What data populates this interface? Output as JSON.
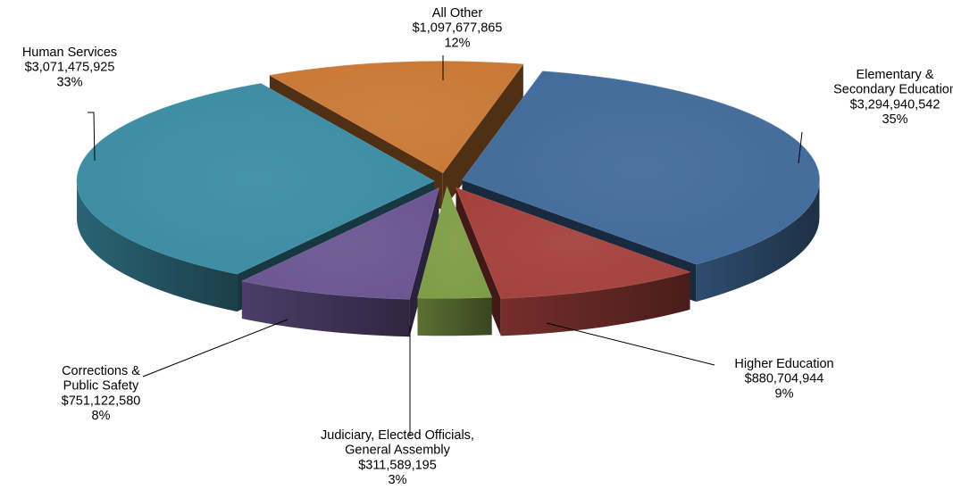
{
  "chart_data": {
    "type": "pie",
    "title": "",
    "slices": [
      {
        "name": "All Other",
        "lines": [
          "All Other"
        ],
        "amount": "$1,097,677,865",
        "value": 1097677865,
        "percent": "12%",
        "color": "#c97834"
      },
      {
        "name": "Elementary & Secondary Education",
        "lines": [
          "Elementary &",
          "Secondary Education"
        ],
        "amount": "$3,294,940,542",
        "value": 3294940542,
        "percent": "35%",
        "color": "#416a9a"
      },
      {
        "name": "Higher Education",
        "lines": [
          "Higher Education"
        ],
        "amount": "$880,704,944",
        "value": 880704944,
        "percent": "9%",
        "color": "#a3403c"
      },
      {
        "name": "Judiciary, Elected Officials, General Assembly",
        "lines": [
          "Judiciary,  Elected Officials,",
          "General Assembly"
        ],
        "amount": "$311,589,195",
        "value": 311589195,
        "percent": "3%",
        "color": "#7e9c45"
      },
      {
        "name": "Corrections & Public Safety",
        "lines": [
          "Corrections  &",
          "Public Safety"
        ],
        "amount": "$751,122,580",
        "value": 751122580,
        "percent": "8%",
        "color": "#6a5591"
      },
      {
        "name": "Human Services",
        "lines": [
          "Human Services"
        ],
        "amount": "$3,071,475,925",
        "value": 3071475925,
        "percent": "33%",
        "color": "#3b8ba3"
      }
    ],
    "legend": "none"
  }
}
